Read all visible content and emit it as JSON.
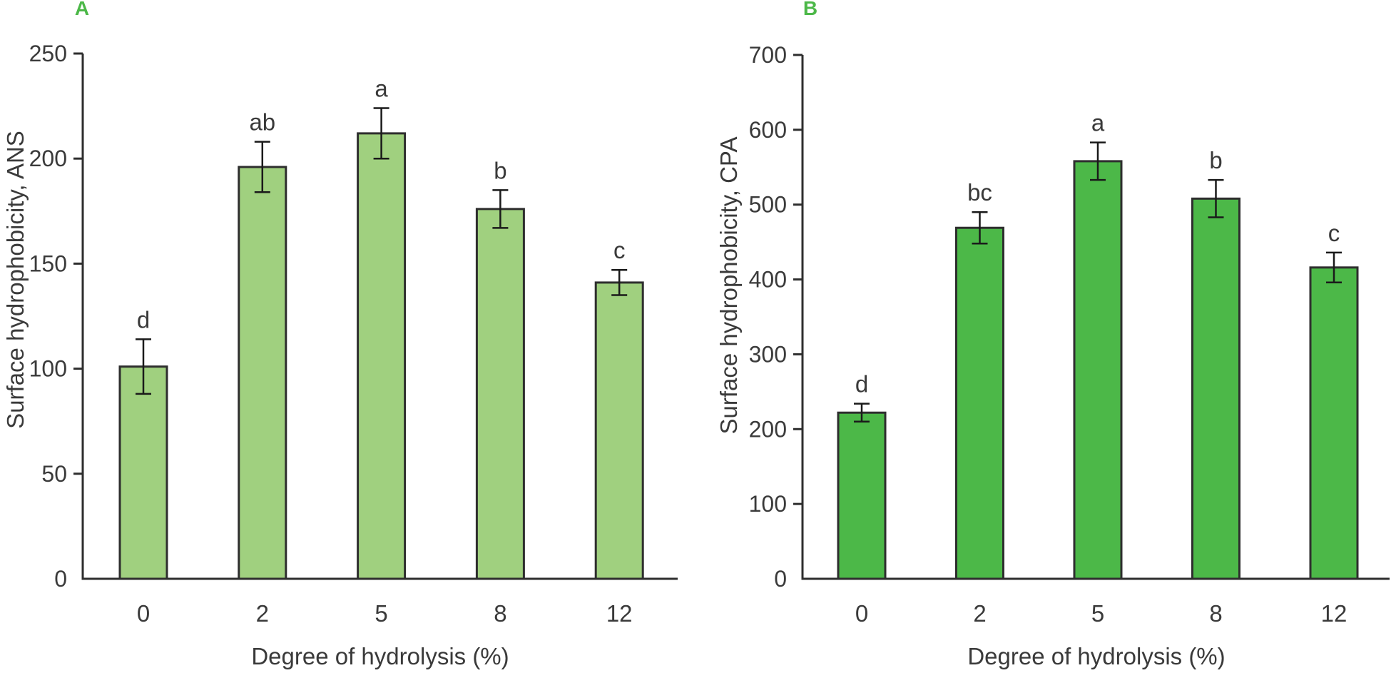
{
  "figure": {
    "background": "#ffffff",
    "text_color": "#3a3a3a",
    "axis_color": "#2e2e2e",
    "error_bar_color": "#1a1a1a",
    "panel_letter_color": "#4cb848"
  },
  "chart_data": [
    {
      "type": "bar",
      "panel_label": "A",
      "title": "",
      "xlabel": "Degree of hydrolysis (%)",
      "ylabel": "Surface hydrophobicity, ANS",
      "categories": [
        "0",
        "2",
        "5",
        "8",
        "12"
      ],
      "values": [
        101,
        196,
        212,
        176,
        141
      ],
      "errors": [
        13,
        12,
        12,
        9,
        6
      ],
      "sig_letters": [
        "d",
        "ab",
        "a",
        "b",
        "c"
      ],
      "ylim": [
        0,
        250
      ],
      "yticks": [
        0,
        50,
        100,
        150,
        200,
        250
      ],
      "grid": "off",
      "legend": "none",
      "bar_color": "#a0d07f",
      "bar_border_color": "#2e2e2e"
    },
    {
      "type": "bar",
      "panel_label": "B",
      "title": "",
      "xlabel": "Degree of hydrolysis (%)",
      "ylabel": "Surface hydrophobicity, CPA",
      "categories": [
        "0",
        "2",
        "5",
        "8",
        "12"
      ],
      "values": [
        222,
        469,
        558,
        508,
        416
      ],
      "errors": [
        12,
        21,
        25,
        25,
        20
      ],
      "sig_letters": [
        "d",
        "bc",
        "a",
        "b",
        "c"
      ],
      "ylim": [
        0,
        700
      ],
      "yticks": [
        0,
        100,
        200,
        300,
        400,
        500,
        600,
        700
      ],
      "grid": "off",
      "legend": "none",
      "bar_color": "#4cb848",
      "bar_border_color": "#2e2e2e"
    }
  ]
}
